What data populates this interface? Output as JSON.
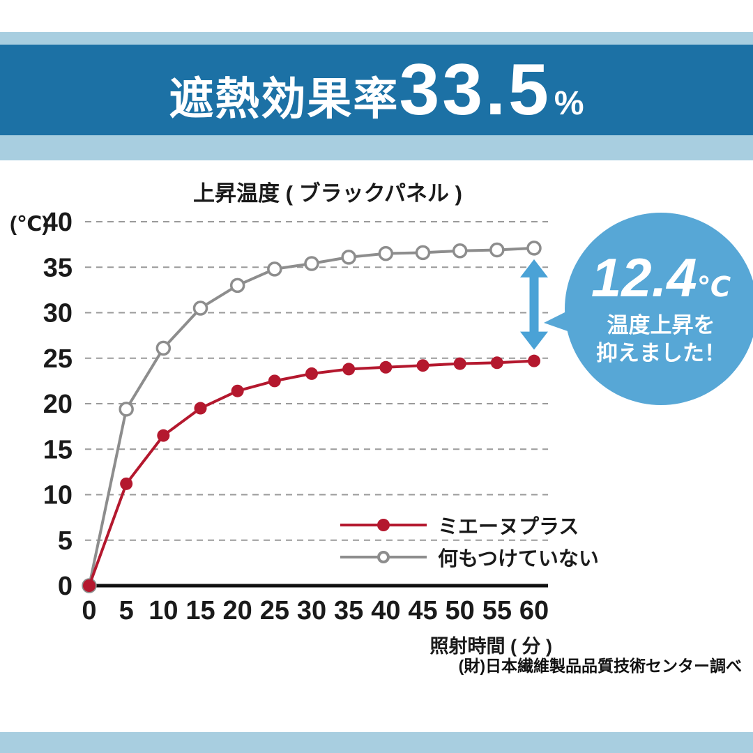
{
  "header": {
    "title_prefix": "遮熱効果率",
    "title_value": "33.5",
    "title_unit": "%"
  },
  "colors": {
    "band": "#1c71a5",
    "stripe": "#a8cee0",
    "bubble": "#57a7d6",
    "arrow": "#4aa2d6"
  },
  "chart_data": {
    "type": "line",
    "title": "上昇温度 ( ブラックパネル )",
    "y_unit": "(℃)",
    "xlabel": "照射時間 ( 分 )",
    "x": [
      0,
      5,
      10,
      15,
      20,
      25,
      30,
      35,
      40,
      45,
      50,
      55,
      60
    ],
    "yticks": [
      0,
      5,
      10,
      15,
      20,
      25,
      30,
      35,
      40
    ],
    "ylim": [
      0,
      40
    ],
    "xlim": [
      0,
      60
    ],
    "grid": "dashed-horizontal",
    "legend_position": "inside-bottom-right",
    "series": [
      {
        "name": "ミエーヌプラス",
        "color": "#b4182e",
        "marker": "filled",
        "values": [
          0,
          11.2,
          16.5,
          19.5,
          21.4,
          22.5,
          23.3,
          23.8,
          24.0,
          24.2,
          24.4,
          24.5,
          24.7
        ]
      },
      {
        "name": "何もつけていない",
        "color": "#8d8d8d",
        "marker": "open",
        "values": [
          0,
          19.4,
          26.1,
          30.5,
          33.0,
          34.8,
          35.4,
          36.1,
          36.5,
          36.6,
          36.8,
          36.9,
          37.1
        ]
      }
    ]
  },
  "annotation": {
    "value": "12.4",
    "unit": "℃",
    "line1": "温度上昇を",
    "line2": "抑えました！"
  },
  "footer": {
    "source": "(財)日本繊維製品品質技術センター調べ"
  }
}
